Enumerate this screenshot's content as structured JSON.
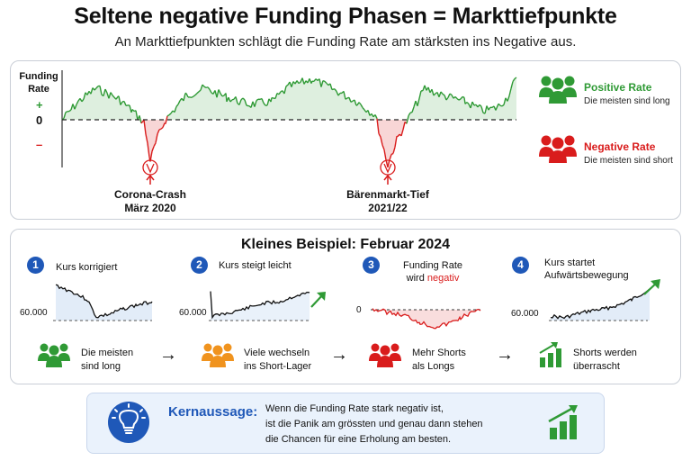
{
  "header": {
    "title": "Seltene negative Funding Phasen = Markttiefpunkte",
    "subtitle": "An Markttiefpunkten schlägt die Funding Rate am stärksten ins Negative aus."
  },
  "main_chart": {
    "axis_label_line1": "Funding",
    "axis_label_line2": "Rate",
    "plus_symbol": "+",
    "zero_label": "0",
    "minus_symbol": "–",
    "events": [
      {
        "line1": "Corona-Crash",
        "line2": "März 2020"
      },
      {
        "line1": "Bärenmarkt-Tief",
        "line2": "2021/22"
      }
    ],
    "colors": {
      "positive": "#2f9a35",
      "negative": "#d91c1c"
    }
  },
  "legend": {
    "positive": {
      "title": "Positive Rate",
      "subtitle": "Die meisten sind long"
    },
    "negative": {
      "title": "Negative Rate",
      "subtitle": "Die meisten sind short"
    }
  },
  "example": {
    "title": "Kleines Beispiel: Februar 2024",
    "steps": [
      {
        "number": "1",
        "label_line1": "Kurs korrigiert",
        "label_line2": "",
        "value_label": "60.000",
        "desc_line1": "Die meisten",
        "desc_line2": "sind long",
        "people_color": "#2f9a35"
      },
      {
        "number": "2",
        "label_line1": "Kurs steigt leicht",
        "label_line2": "",
        "value_label": "60.000",
        "desc_line1": "Viele wechseln",
        "desc_line2": "ins Short-Lager",
        "people_color": "#f0931e"
      },
      {
        "number": "3",
        "label_line1": "Funding Rate",
        "label_line2_prefix": "wird ",
        "label_line2_highlight": "negativ",
        "value_label": "0",
        "desc_line1": "Mehr Shorts",
        "desc_line2": "als Longs",
        "people_color": "#d91c1c"
      },
      {
        "number": "4",
        "label_line1": "Kurs startet",
        "label_line2": "Aufwärtsbewegung",
        "value_label": "60.000",
        "desc_line1": "Shorts werden",
        "desc_line2": "überrascht",
        "icon": "bar-chart-up-icon"
      }
    ],
    "arrow_symbol": "→"
  },
  "takeaway": {
    "key": "Kernaussage:",
    "line1": "Wenn die Funding Rate stark negativ ist,",
    "line2": "ist die Panik am grössten und genau dann stehen",
    "line3": "die Chancen für eine Erholung am besten.",
    "icon": "lightbulb-icon"
  }
}
